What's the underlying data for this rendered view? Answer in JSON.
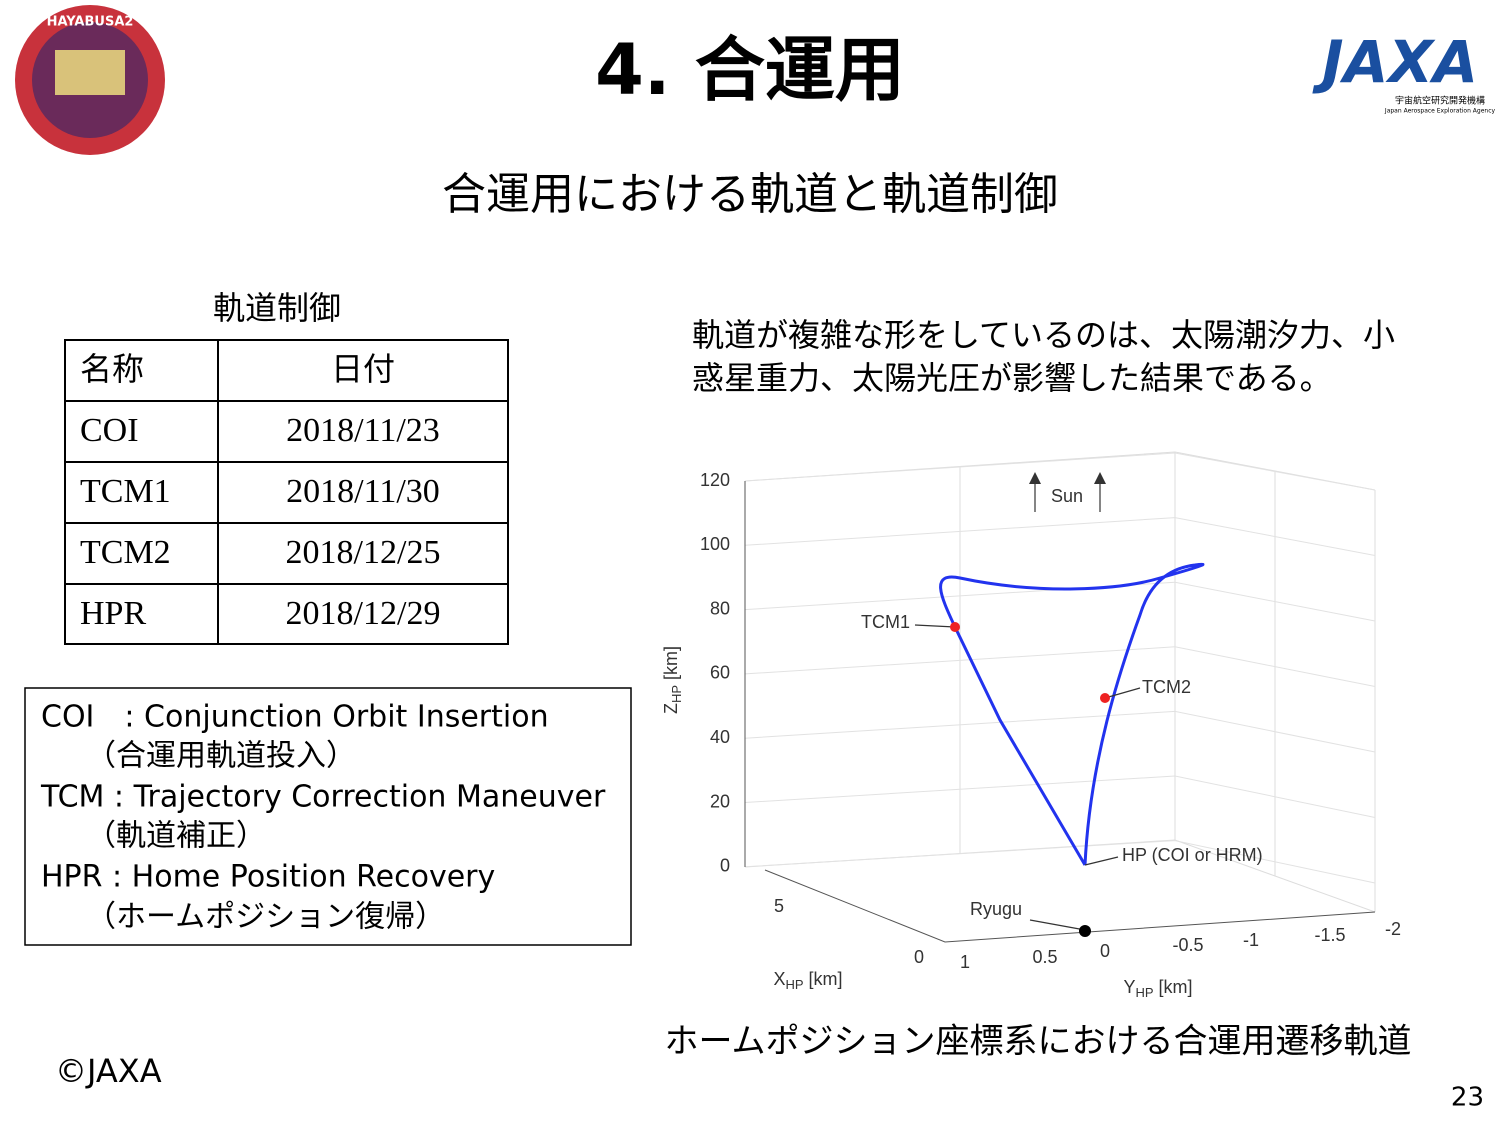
{
  "header": {
    "title": "4. 合運用",
    "subtitle": "合運用における軌道と軌道制御",
    "mission_logo": "HAYABUSA2",
    "agency": {
      "name": "JAXA",
      "name_ja": "宇宙航空研究開発機構",
      "name_en": "Japan Aerospace Exploration Agency"
    }
  },
  "table": {
    "caption": "軌道制御",
    "columns": [
      "名称",
      "日付"
    ],
    "rows": [
      [
        "COI",
        "2018/11/23"
      ],
      [
        "TCM1",
        "2018/11/30"
      ],
      [
        "TCM2",
        "2018/12/25"
      ],
      [
        "HPR",
        "2018/12/29"
      ]
    ]
  },
  "glossary": [
    "COI　: Conjunction Orbit Insertion",
    "　　（合運用軌道投入）",
    "TCM : Trajectory Correction Maneuver",
    "　　（軌道補正）",
    "HPR : Home Position Recovery",
    "　　（ホームポジション復帰）"
  ],
  "note": [
    "軌道が複雑な形をしているのは、太陽潮汐力、小",
    "惑星重力、太陽光圧が影響した結果である。"
  ],
  "figure": {
    "z_axis": {
      "name": "Z",
      "sub": "HP",
      "unit": "[km]",
      "ticks": [
        "120",
        "100",
        "80",
        "60",
        "40",
        "20",
        "0"
      ]
    },
    "x_axis": {
      "name": "X",
      "sub": "HP",
      "unit": "[km]",
      "ticks": [
        "5",
        "0"
      ]
    },
    "y_axis": {
      "name": "Y",
      "sub": "HP",
      "unit": "[km]",
      "ticks": [
        "1",
        "0.5",
        "0",
        "-0.5",
        "-1",
        "-1.5",
        "-2"
      ]
    },
    "annotations": [
      "Sun",
      "TCM1",
      "TCM2",
      "HP (COI or HRM)",
      "Ryugu"
    ],
    "caption": "ホームポジション座標系における合運用遷移軌道"
  },
  "footer": {
    "copyright": "©JAXA",
    "page": "23"
  }
}
